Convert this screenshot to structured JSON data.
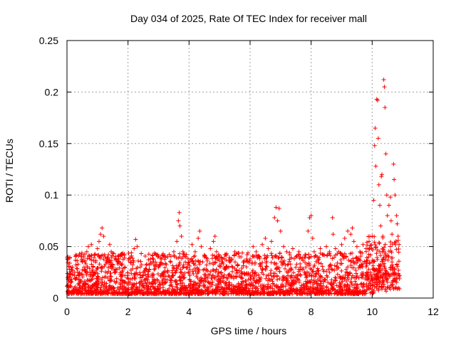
{
  "chart_data": {
    "type": "scatter",
    "title": "Day 034 of 2025, Rate Of TEC Index for receiver mall",
    "xlabel": "GPS time / hours",
    "ylabel": "ROTI / TECUs",
    "xlim": [
      0,
      12
    ],
    "ylim": [
      0,
      0.25
    ],
    "xticks": [
      0,
      2,
      4,
      6,
      8,
      10,
      12
    ],
    "xtick_labels": [
      "0",
      "2",
      "4",
      "6",
      "8",
      "10",
      "12"
    ],
    "yticks": [
      0,
      0.05,
      0.1,
      0.15,
      0.2,
      0.25
    ],
    "ytick_labels": [
      "0",
      "0.05",
      "0.1",
      "0.15",
      "0.2",
      "0.25"
    ],
    "grid": true,
    "marker": "+",
    "series": [
      {
        "name": "ROTI",
        "color": "#ff0000",
        "data_extent_x": [
          0,
          10.9
        ],
        "points": [
          [
            0.02,
            0.012
          ],
          [
            0.05,
            0.021
          ],
          [
            0.08,
            0.028
          ],
          [
            0.12,
            0.015
          ],
          [
            0.18,
            0.03
          ],
          [
            0.25,
            0.022
          ],
          [
            0.3,
            0.008
          ],
          [
            0.35,
            0.025
          ],
          [
            0.42,
            0.018
          ],
          [
            0.5,
            0.035
          ],
          [
            0.55,
            0.04
          ],
          [
            0.6,
            0.028
          ],
          [
            0.65,
            0.045
          ],
          [
            0.7,
            0.05
          ],
          [
            0.75,
            0.038
          ],
          [
            0.8,
            0.052
          ],
          [
            0.85,
            0.03
          ],
          [
            0.9,
            0.042
          ],
          [
            0.95,
            0.025
          ],
          [
            1.0,
            0.048
          ],
          [
            1.05,
            0.055
          ],
          [
            1.1,
            0.062
          ],
          [
            1.15,
            0.068
          ],
          [
            1.2,
            0.06
          ],
          [
            1.25,
            0.04
          ],
          [
            1.3,
            0.035
          ],
          [
            1.4,
            0.052
          ],
          [
            1.45,
            0.045
          ],
          [
            1.5,
            0.032
          ],
          [
            1.6,
            0.028
          ],
          [
            1.7,
            0.038
          ],
          [
            1.8,
            0.025
          ],
          [
            1.9,
            0.03
          ],
          [
            2.0,
            0.022
          ],
          [
            2.1,
            0.035
          ],
          [
            2.2,
            0.048
          ],
          [
            2.25,
            0.057
          ],
          [
            2.3,
            0.05
          ],
          [
            2.4,
            0.03
          ],
          [
            2.5,
            0.025
          ],
          [
            2.6,
            0.032
          ],
          [
            2.7,
            0.028
          ],
          [
            2.8,
            0.022
          ],
          [
            2.9,
            0.035
          ],
          [
            3.0,
            0.03
          ],
          [
            3.1,
            0.038
          ],
          [
            3.2,
            0.025
          ],
          [
            3.3,
            0.04
          ],
          [
            3.4,
            0.035
          ],
          [
            3.5,
            0.045
          ],
          [
            3.6,
            0.055
          ],
          [
            3.65,
            0.075
          ],
          [
            3.68,
            0.083
          ],
          [
            3.7,
            0.07
          ],
          [
            3.75,
            0.06
          ],
          [
            3.8,
            0.045
          ],
          [
            3.9,
            0.04
          ],
          [
            4.0,
            0.035
          ],
          [
            4.1,
            0.052
          ],
          [
            4.2,
            0.045
          ],
          [
            4.3,
            0.058
          ],
          [
            4.35,
            0.065
          ],
          [
            4.4,
            0.05
          ],
          [
            4.5,
            0.04
          ],
          [
            4.6,
            0.038
          ],
          [
            4.7,
            0.048
          ],
          [
            4.8,
            0.055
          ],
          [
            4.85,
            0.06
          ],
          [
            4.9,
            0.045
          ],
          [
            5.0,
            0.04
          ],
          [
            5.1,
            0.035
          ],
          [
            5.2,
            0.042
          ],
          [
            5.3,
            0.03
          ],
          [
            5.4,
            0.038
          ],
          [
            5.5,
            0.045
          ],
          [
            5.6,
            0.032
          ],
          [
            5.7,
            0.04
          ],
          [
            5.8,
            0.035
          ],
          [
            5.9,
            0.042
          ],
          [
            6.0,
            0.038
          ],
          [
            6.1,
            0.05
          ],
          [
            6.2,
            0.045
          ],
          [
            6.3,
            0.04
          ],
          [
            6.4,
            0.052
          ],
          [
            6.5,
            0.058
          ],
          [
            6.6,
            0.048
          ],
          [
            6.7,
            0.055
          ],
          [
            6.8,
            0.078
          ],
          [
            6.85,
            0.088
          ],
          [
            6.9,
            0.075
          ],
          [
            6.95,
            0.087
          ],
          [
            7.0,
            0.065
          ],
          [
            7.1,
            0.05
          ],
          [
            7.2,
            0.045
          ],
          [
            7.3,
            0.042
          ],
          [
            7.4,
            0.048
          ],
          [
            7.5,
            0.04
          ],
          [
            7.6,
            0.045
          ],
          [
            7.7,
            0.038
          ],
          [
            7.8,
            0.042
          ],
          [
            7.9,
            0.065
          ],
          [
            7.95,
            0.078
          ],
          [
            8.0,
            0.08
          ],
          [
            8.05,
            0.058
          ],
          [
            8.1,
            0.045
          ],
          [
            8.2,
            0.04
          ],
          [
            8.3,
            0.048
          ],
          [
            8.4,
            0.042
          ],
          [
            8.5,
            0.05
          ],
          [
            8.6,
            0.045
          ],
          [
            8.7,
            0.078
          ],
          [
            8.72,
            0.062
          ],
          [
            8.8,
            0.048
          ],
          [
            8.9,
            0.045
          ],
          [
            9.0,
            0.052
          ],
          [
            9.1,
            0.058
          ],
          [
            9.2,
            0.065
          ],
          [
            9.3,
            0.062
          ],
          [
            9.35,
            0.068
          ],
          [
            9.4,
            0.055
          ],
          [
            9.5,
            0.05
          ],
          [
            9.6,
            0.045
          ],
          [
            9.7,
            0.052
          ],
          [
            9.8,
            0.048
          ],
          [
            9.9,
            0.055
          ],
          [
            10.0,
            0.06
          ],
          [
            10.05,
            0.095
          ],
          [
            10.08,
            0.148
          ],
          [
            10.1,
            0.165
          ],
          [
            10.12,
            0.128
          ],
          [
            10.15,
            0.193
          ],
          [
            10.18,
            0.192
          ],
          [
            10.2,
            0.155
          ],
          [
            10.22,
            0.11
          ],
          [
            10.25,
            0.09
          ],
          [
            10.28,
            0.07
          ],
          [
            10.3,
            0.118
          ],
          [
            10.32,
            0.12
          ],
          [
            10.35,
            0.06
          ],
          [
            10.38,
            0.212
          ],
          [
            10.4,
            0.205
          ],
          [
            10.42,
            0.185
          ],
          [
            10.45,
            0.14
          ],
          [
            10.48,
            0.1
          ],
          [
            10.5,
            0.08
          ],
          [
            10.55,
            0.09
          ],
          [
            10.6,
            0.098
          ],
          [
            10.62,
            0.075
          ],
          [
            10.65,
            0.062
          ],
          [
            10.7,
            0.13
          ],
          [
            10.72,
            0.115
          ],
          [
            10.75,
            0.1
          ],
          [
            10.8,
            0.08
          ],
          [
            10.82,
            0.072
          ],
          [
            10.85,
            0.06
          ],
          [
            10.88,
            0.052
          ]
        ]
      }
    ]
  }
}
